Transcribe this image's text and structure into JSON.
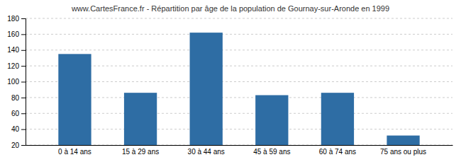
{
  "chart_data": {
    "type": "bar",
    "title": "www.CartesFrance.fr - Répartition par âge de la population de Gournay-sur-Aronde en 1999",
    "categories": [
      "0 à 14 ans",
      "15 à 29 ans",
      "30 à 44 ans",
      "45 à 59 ans",
      "60 à 74 ans",
      "75 ans ou plus"
    ],
    "values": [
      135,
      86,
      162,
      83,
      86,
      32
    ],
    "color": "#2e6da4",
    "ylim": [
      20,
      180
    ],
    "yticks": [
      20,
      40,
      60,
      80,
      100,
      120,
      140,
      160,
      180
    ],
    "grid": true
  }
}
